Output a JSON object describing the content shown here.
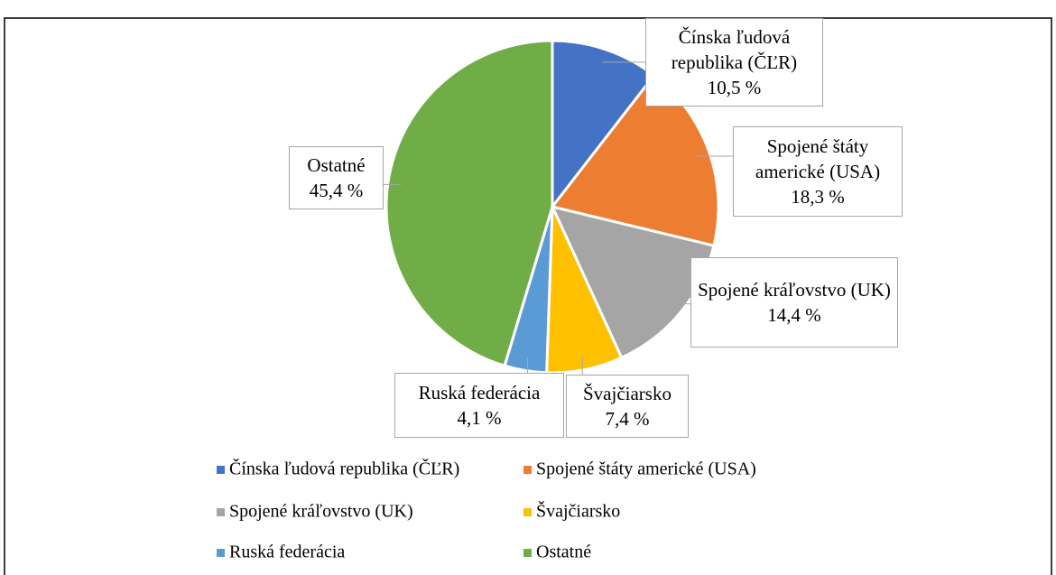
{
  "chart_data": {
    "type": "pie",
    "categories": [
      "Čínska ľudová republika (ČĽR)",
      "Spojené štáty americké (USA)",
      "Spojené kráľovstvo (UK)",
      "Švajčiarsko",
      "Ruská federácia",
      "Ostatné"
    ],
    "values": [
      10.5,
      18.3,
      14.4,
      7.4,
      4.1,
      45.4
    ],
    "value_labels": [
      "10,5 %",
      "18,3 %",
      "14,4 %",
      "7,4 %",
      "4,1 %",
      "45,4 %"
    ],
    "colors": [
      "#4472c4",
      "#ed7d31",
      "#a5a5a5",
      "#ffc000",
      "#5b9bd5",
      "#70ad47"
    ],
    "legend": "bottom"
  }
}
